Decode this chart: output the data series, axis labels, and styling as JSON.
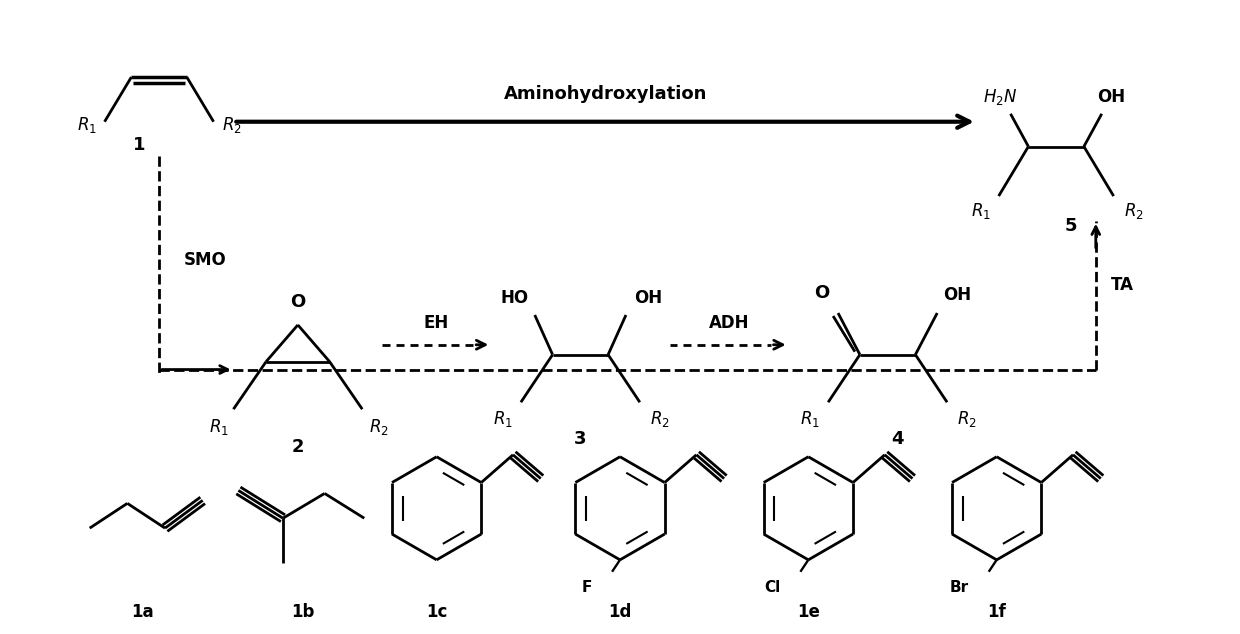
{
  "bg_color": "#ffffff",
  "line_color": "#000000",
  "figsize": [
    12.4,
    6.34
  ],
  "dpi": 100,
  "arrow_label": "Aminohydroxylation",
  "enzyme_labels": [
    "SMO",
    "EH",
    "ADH",
    "TA"
  ],
  "compound_numbers": [
    "1",
    "2",
    "3",
    "4",
    "5"
  ],
  "bottom_labels": [
    "1a",
    "1b",
    "1c",
    "1d",
    "1e",
    "1f"
  ],
  "sub_labels": [
    "F",
    "Cl",
    "Br"
  ]
}
